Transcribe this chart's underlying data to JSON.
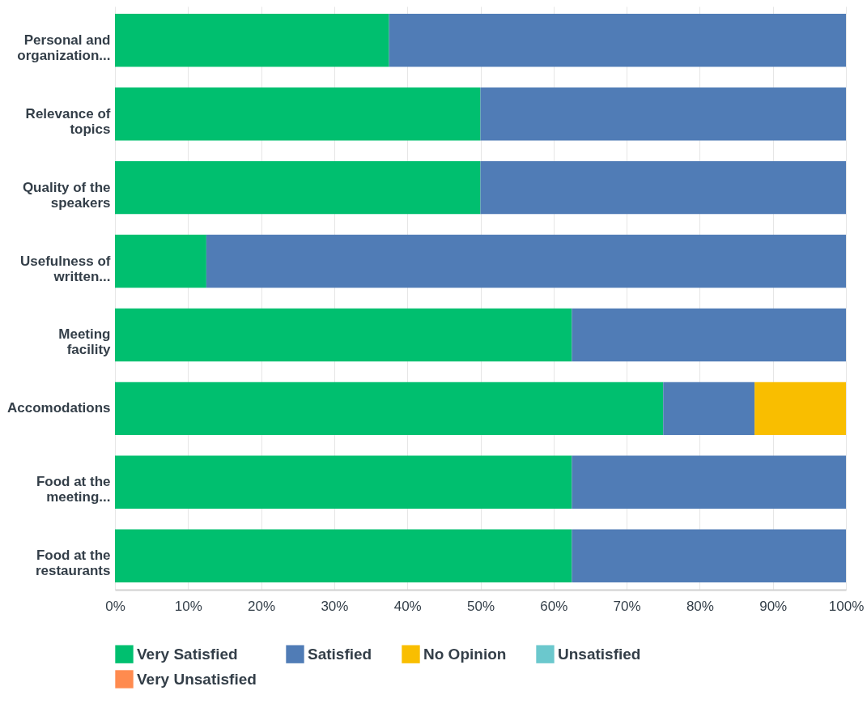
{
  "chart_data": {
    "type": "bar",
    "orientation": "horizontal",
    "stacked": true,
    "grid": "x",
    "legend": "bottom",
    "categories": [
      "Personal and organization...",
      "Relevance of topics",
      "Quality of the speakers",
      "Usefulness of written...",
      "Meeting facility",
      "Accomodations",
      "Food at the meeting...",
      "Food at the restaurants"
    ],
    "xlim": [
      0,
      100
    ],
    "xticks": [
      {
        "value": 0,
        "label": "0%"
      },
      {
        "value": 10,
        "label": "10%"
      },
      {
        "value": 20,
        "label": "20%"
      },
      {
        "value": 30,
        "label": "30%"
      },
      {
        "value": 40,
        "label": "40%"
      },
      {
        "value": 50,
        "label": "50%"
      },
      {
        "value": 60,
        "label": "60%"
      },
      {
        "value": 70,
        "label": "70%"
      },
      {
        "value": 80,
        "label": "80%"
      },
      {
        "value": 90,
        "label": "90%"
      },
      {
        "value": 100,
        "label": "100%"
      }
    ],
    "series": [
      {
        "name": "Very Satisfied",
        "color": "#00bf6f",
        "values": [
          37.5,
          50,
          50,
          12.5,
          62.5,
          75,
          62.5,
          62.5
        ]
      },
      {
        "name": "Satisfied",
        "color": "#507cb6",
        "values": [
          62.5,
          50,
          50,
          87.5,
          37.5,
          12.5,
          37.5,
          37.5
        ]
      },
      {
        "name": "No Opinion",
        "color": "#f9be00",
        "values": [
          0,
          0,
          0,
          0,
          0,
          12.5,
          0,
          0
        ]
      },
      {
        "name": "Unsatisfied",
        "color": "#6bc8cd",
        "values": [
          0,
          0,
          0,
          0,
          0,
          0,
          0,
          0
        ]
      },
      {
        "name": "Very Unsatisfied",
        "color": "#ff8b4f",
        "values": [
          0,
          0,
          0,
          0,
          0,
          0,
          0,
          0
        ]
      }
    ]
  }
}
